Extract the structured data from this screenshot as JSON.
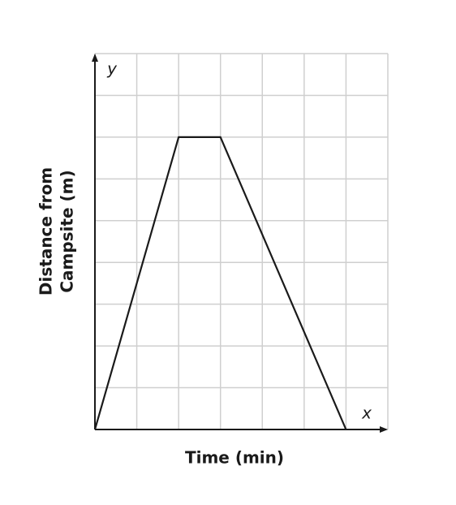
{
  "chart_data": {
    "type": "line",
    "x_label": "Time (min)",
    "y_label": [
      "Distance from",
      "Campsite (m)"
    ],
    "x_axis_symbol": "x",
    "y_axis_symbol": "y",
    "x": [
      0,
      2,
      3,
      6
    ],
    "series": [
      {
        "color": "#1a1a1a",
        "values": [
          0,
          7,
          7,
          0
        ]
      }
    ],
    "xlim": [
      0,
      7
    ],
    "ylim": [
      0,
      9
    ],
    "xticks": [
      0,
      1,
      2,
      3,
      4,
      5,
      6,
      7
    ],
    "yticks": [
      0,
      1,
      2,
      3,
      4,
      5,
      6,
      7,
      8,
      9
    ],
    "grid": true,
    "tick_labels": false
  }
}
